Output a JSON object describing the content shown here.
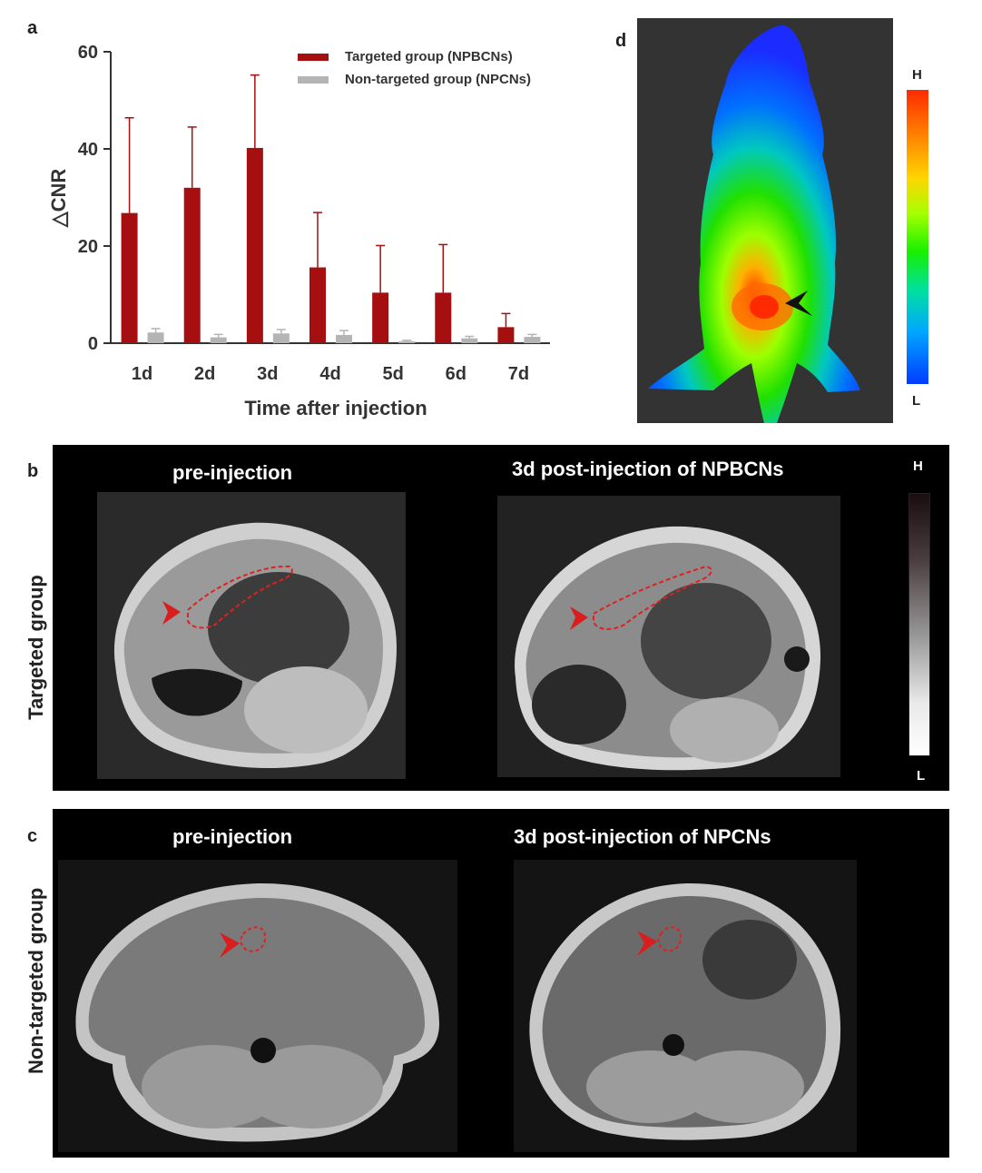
{
  "panels": {
    "a": "a",
    "b": "b",
    "c": "c",
    "d": "d"
  },
  "chart_data": {
    "type": "bar",
    "categories": [
      "1d",
      "2d",
      "3d",
      "4d",
      "5d",
      "6d",
      "7d"
    ],
    "series": [
      {
        "name": "Targeted group (NPBCNs)",
        "color": "#a50f0f",
        "values": [
          26.8,
          32.0,
          40.2,
          15.6,
          10.4,
          10.4,
          3.3
        ],
        "error": [
          19.6,
          12.5,
          15.0,
          11.3,
          9.7,
          9.9,
          2.8
        ]
      },
      {
        "name": "Non-targeted group (NPCNs)",
        "color": "#b4b4b4",
        "values": [
          2.2,
          1.2,
          2.0,
          1.7,
          0.4,
          1.0,
          1.3
        ],
        "error": [
          0.8,
          0.6,
          0.8,
          0.9,
          0.2,
          0.4,
          0.5
        ]
      }
    ],
    "ylabel": "△CNR",
    "xlabel": "Time after injection",
    "ylim": [
      0,
      60
    ],
    "yticks": [
      0,
      20,
      40,
      60
    ],
    "legend": "top-right",
    "grid": false
  },
  "panel_b": {
    "left_title": "pre-injection",
    "right_title": "3d post-injection of NPBCNs",
    "row_label": "Targeted group",
    "colorbar": {
      "high": "H",
      "low": "L"
    }
  },
  "panel_c": {
    "left_title": "pre-injection",
    "right_title": "3d post-injection of NPCNs",
    "row_label": "Non-targeted group"
  },
  "panel_d": {
    "colorbar": {
      "high": "H",
      "low": "L"
    }
  },
  "colors": {
    "roi_outline": "#e02020",
    "arrow_red": "#d81e1e",
    "arrow_black": "#111111"
  }
}
